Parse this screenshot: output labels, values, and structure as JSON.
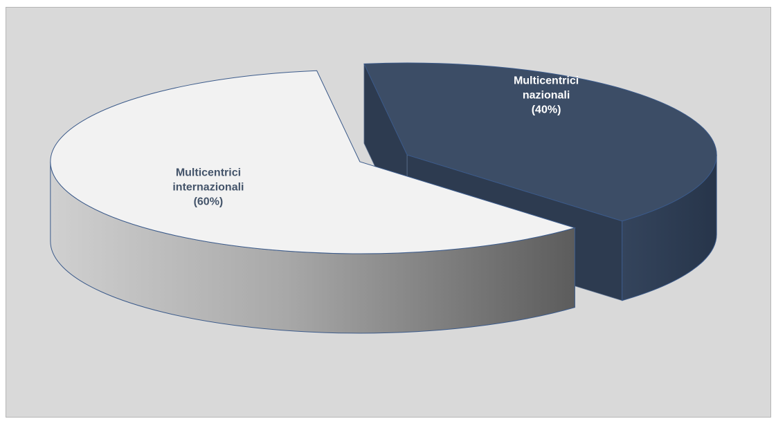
{
  "chart_data": {
    "type": "pie",
    "style": "3d-exploded",
    "title": "",
    "slices": [
      {
        "label_lines": [
          "Multicentrici",
          "nazionali",
          "(40%)"
        ],
        "value": 40,
        "color_top": "#3c4d66",
        "color_side": "#2d3b50",
        "label_color": "#ffffff"
      },
      {
        "label_lines": [
          "Multicentrici",
          "internazionali",
          "(60%)"
        ],
        "value": 60,
        "color_top": "#f2f2f2",
        "color_side": "#8c8c8c",
        "label_color": "#44546a"
      }
    ],
    "legend": "none",
    "background": "#d9d9d9"
  }
}
